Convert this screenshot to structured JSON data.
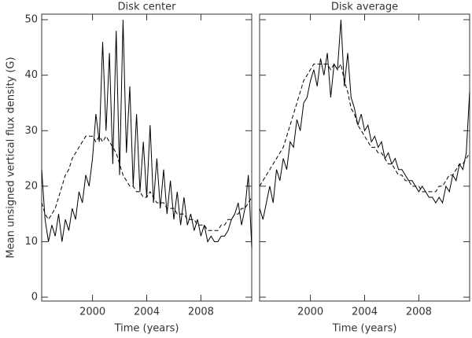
{
  "chart_data": [
    {
      "type": "line",
      "title": "Disk center",
      "x_label": "Time (years)",
      "y_label": "Mean unsigned vertical flux density (G)",
      "x": [
        1996.25,
        1996.5,
        1996.75,
        1997,
        1997.25,
        1997.5,
        1997.75,
        1998,
        1998.25,
        1998.5,
        1998.75,
        1999,
        1999.25,
        1999.5,
        1999.75,
        2000,
        2000.25,
        2000.5,
        2000.75,
        2001,
        2001.25,
        2001.5,
        2001.75,
        2002,
        2002.25,
        2002.5,
        2002.75,
        2003,
        2003.25,
        2003.5,
        2003.75,
        2004,
        2004.25,
        2004.5,
        2004.75,
        2005,
        2005.25,
        2005.5,
        2005.75,
        2006,
        2006.25,
        2006.5,
        2006.75,
        2007,
        2007.25,
        2007.5,
        2007.75,
        2008,
        2008.25,
        2008.5,
        2008.75,
        2009,
        2009.25,
        2009.5,
        2009.75,
        2010,
        2010.25,
        2010.5,
        2010.75,
        2011,
        2011.25,
        2011.5,
        2011.75
      ],
      "series": [
        {
          "color": "#000000",
          "dash": false,
          "values": [
            23,
            14,
            10,
            13,
            11,
            15,
            10,
            14,
            12,
            16,
            14,
            19,
            17,
            22,
            20,
            25,
            33,
            28,
            46,
            30,
            44,
            24,
            48,
            22,
            50,
            26,
            38,
            20,
            33,
            19,
            28,
            18,
            31,
            17,
            25,
            16,
            23,
            15,
            21,
            14,
            19,
            13,
            18,
            13,
            15,
            12,
            14,
            11,
            13,
            10,
            11,
            10,
            10,
            11,
            11,
            12,
            14,
            15,
            17,
            13,
            16,
            22,
            9
          ]
        },
        {
          "color": "#000000",
          "dash": true,
          "values": [
            17,
            15,
            14,
            15,
            16,
            18,
            20,
            22,
            23,
            25,
            26,
            27,
            28,
            29,
            29,
            29,
            28,
            29,
            28,
            29,
            28,
            27,
            26,
            24,
            22,
            21,
            20,
            20,
            19,
            19,
            18,
            18,
            19,
            18,
            17,
            17,
            17,
            16,
            16,
            16,
            15,
            15,
            15,
            14,
            14,
            14,
            13,
            13,
            13,
            12,
            12,
            12,
            12,
            13,
            13,
            14,
            14,
            15,
            15,
            16,
            16,
            17,
            18
          ]
        }
      ],
      "xlim": [
        1996.25,
        2011.75
      ],
      "xticks": [
        2000,
        2004,
        2008
      ],
      "ylim": [
        -0.7,
        51
      ],
      "yticks": [
        0,
        10,
        20,
        30,
        40,
        50
      ],
      "ytick_labels": true
    },
    {
      "type": "line",
      "title": "Disk average",
      "x_label": "Time (years)",
      "x": [
        1996.25,
        1996.5,
        1996.75,
        1997,
        1997.25,
        1997.5,
        1997.75,
        1998,
        1998.25,
        1998.5,
        1998.75,
        1999,
        1999.25,
        1999.5,
        1999.75,
        2000,
        2000.25,
        2000.5,
        2000.75,
        2001,
        2001.25,
        2001.5,
        2001.75,
        2002,
        2002.25,
        2002.5,
        2002.75,
        2003,
        2003.25,
        2003.5,
        2003.75,
        2004,
        2004.25,
        2004.5,
        2004.75,
        2005,
        2005.25,
        2005.5,
        2005.75,
        2006,
        2006.25,
        2006.5,
        2006.75,
        2007,
        2007.25,
        2007.5,
        2007.75,
        2008,
        2008.25,
        2008.5,
        2008.75,
        2009,
        2009.25,
        2009.5,
        2009.75,
        2010,
        2010.25,
        2010.5,
        2010.75,
        2011,
        2011.25,
        2011.5,
        2011.75
      ],
      "series": [
        {
          "color": "#000000",
          "dash": false,
          "values": [
            16,
            14,
            17,
            20,
            17,
            23,
            21,
            25,
            23,
            28,
            27,
            32,
            30,
            35,
            36,
            39,
            41,
            38,
            43,
            40,
            44,
            36,
            42,
            41,
            50,
            38,
            44,
            36,
            34,
            31,
            33,
            30,
            31,
            28,
            29,
            27,
            28,
            25,
            26,
            24,
            25,
            23,
            23,
            22,
            21,
            21,
            20,
            19,
            20,
            19,
            18,
            18,
            17,
            18,
            17,
            20,
            19,
            22,
            21,
            24,
            23,
            26,
            37
          ]
        },
        {
          "color": "#000000",
          "dash": true,
          "values": [
            20,
            21,
            22,
            23,
            24,
            25,
            26,
            27,
            29,
            31,
            33,
            35,
            37,
            39,
            40,
            41,
            42,
            42,
            42,
            42,
            42,
            41,
            42,
            41,
            42,
            39,
            37,
            34,
            33,
            31,
            30,
            29,
            28,
            27,
            27,
            26,
            26,
            25,
            24,
            24,
            23,
            22,
            22,
            21,
            21,
            20,
            20,
            20,
            19,
            19,
            19,
            19,
            19,
            20,
            20,
            21,
            22,
            22,
            23,
            24,
            24,
            25,
            26
          ]
        }
      ],
      "xlim": [
        1996.25,
        2011.75
      ],
      "xticks": [
        2000,
        2004,
        2008
      ],
      "ylim": [
        -0.7,
        51
      ],
      "yticks": [
        0,
        10,
        20,
        30,
        40,
        50
      ],
      "ytick_labels": false
    }
  ]
}
